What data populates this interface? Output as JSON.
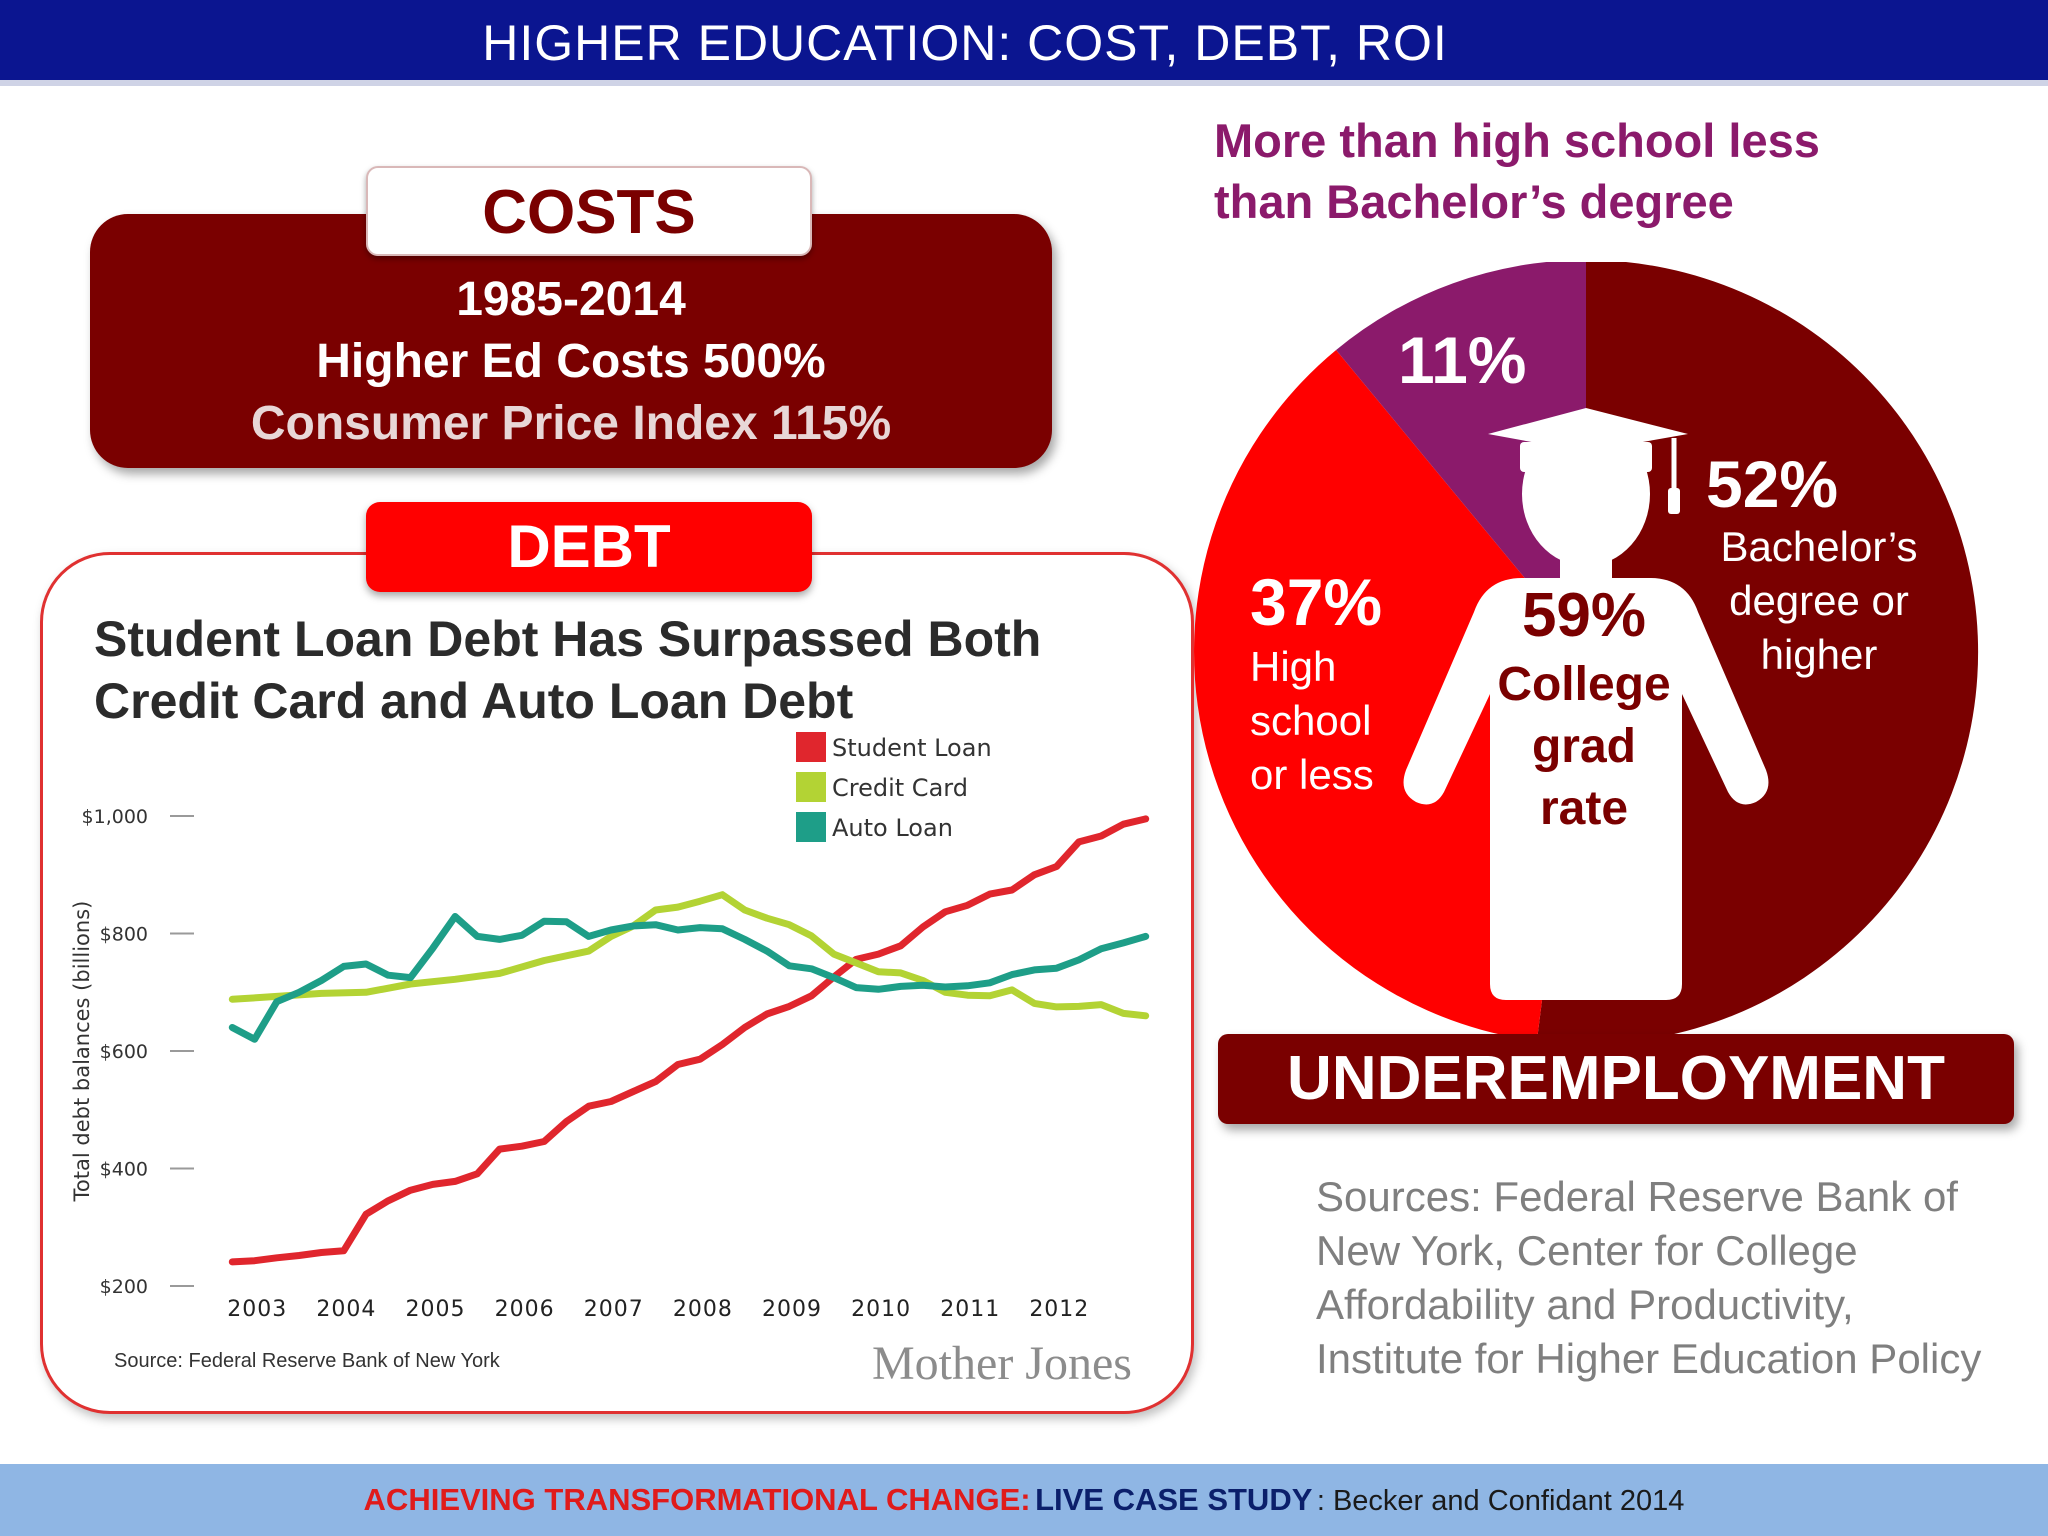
{
  "header": {
    "title": "HIGHER EDUCATION: COST, DEBT, ROI"
  },
  "costs": {
    "title": "COSTS",
    "line1": "1985-2014",
    "line2": "Higher Ed Costs 500%",
    "line3": "Consumer Price Index 115%"
  },
  "debt": {
    "title": "DEBT",
    "chart_title_line1": "Student Loan Debt Has Surpassed Both",
    "chart_title_line2": "Credit Card and Auto Loan Debt",
    "source": "Source: Federal Reserve Bank of New York",
    "brand": "Mother Jones"
  },
  "pie": {
    "heading_line1": "More than high school less",
    "heading_line2": "than Bachelor’s degree",
    "pct_11": "11%",
    "pct_52": "52%",
    "desc_52": [
      "Bachelor’s",
      "degree or",
      "higher"
    ],
    "pct_37": "37%",
    "desc_37": [
      "High",
      "school",
      "or less"
    ],
    "pct_59": "59%",
    "desc_59": [
      "College",
      "grad",
      "rate"
    ],
    "underemployment": "UNDEREMPLOYMENT"
  },
  "sources": "Sources: Federal Reserve Bank of New York, Center for College Affordability and Productivity, Institute for Higher Education Policy",
  "footer": {
    "part1": "ACHIEVING TRANSFORMATIONAL CHANGE:",
    "part2": "LIVE CASE STUDY",
    "part3": ": Becker and Confidant 2014"
  },
  "colors": {
    "header_blue": "#0b1590",
    "dark_red": "#7a0000",
    "bright_red": "#ff0000",
    "purple": "#8b1a6b",
    "student_loan": "#e0262d",
    "credit_card": "#b3d334",
    "auto_loan": "#1e9e88",
    "footer_blue": "#8fb6e4"
  },
  "icons": {
    "graduate": "graduate-silhouette-icon"
  },
  "chart_data": [
    {
      "type": "line",
      "title": "Student Loan Debt Has Surpassed Both Credit Card and Auto Loan Debt",
      "ylabel": "Total debt balances (billions)",
      "xlabel": "",
      "ylim": [
        200,
        1000
      ],
      "yticks": [
        {
          "value": 1000,
          "label": "$1,000"
        },
        {
          "value": 800,
          "label": "$800"
        },
        {
          "value": 600,
          "label": "$600"
        },
        {
          "value": 400,
          "label": "$400"
        },
        {
          "value": 200,
          "label": "$200"
        }
      ],
      "xlim": [
        2002.75,
        2013.5
      ],
      "xticks": [
        2003,
        2004,
        2005,
        2006,
        2007,
        2008,
        2009,
        2010,
        2011,
        2012
      ],
      "grid": false,
      "legend": "top-right",
      "series": [
        {
          "name": "Student Loan",
          "color": "#e0262d",
          "x": [
            2003,
            2003.25,
            2003.5,
            2003.75,
            2004,
            2004.25,
            2004.5,
            2004.75,
            2005,
            2005.25,
            2005.5,
            2005.75,
            2006,
            2006.25,
            2006.5,
            2006.75,
            2007,
            2007.25,
            2007.5,
            2007.75,
            2008,
            2008.25,
            2008.5,
            2008.75,
            2009,
            2009.25,
            2009.5,
            2009.75,
            2010,
            2010.25,
            2010.5,
            2010.75,
            2011,
            2011.25,
            2011.5,
            2011.75,
            2012,
            2012.25,
            2012.5,
            2012.75,
            2013,
            2013.25
          ],
          "values": [
            241,
            243,
            248,
            252,
            257,
            260,
            322,
            345,
            363,
            373,
            378,
            391,
            433,
            438,
            446,
            480,
            506,
            514,
            531,
            548,
            577,
            586,
            611,
            640,
            663,
            676,
            694,
            726,
            756,
            765,
            779,
            811,
            837,
            848,
            867,
            874,
            900,
            914,
            956,
            966,
            986,
            995
          ]
        },
        {
          "name": "Credit Card",
          "color": "#b3d334",
          "x": [
            2003,
            2003.5,
            2004,
            2004.5,
            2005,
            2005.5,
            2006,
            2006.5,
            2007,
            2007.25,
            2007.5,
            2007.75,
            2008,
            2008.25,
            2008.5,
            2008.75,
            2009,
            2009.25,
            2009.5,
            2009.75,
            2010,
            2010.25,
            2010.5,
            2010.75,
            2011,
            2011.25,
            2011.5,
            2011.75,
            2012,
            2012.25,
            2012.5,
            2012.75,
            2013,
            2013.25
          ],
          "values": [
            688,
            693,
            698,
            700,
            714,
            722,
            732,
            754,
            770,
            795,
            813,
            840,
            845,
            855,
            866,
            840,
            826,
            815,
            796,
            765,
            750,
            735,
            733,
            720,
            700,
            695,
            694,
            704,
            681,
            675,
            676,
            679,
            664,
            660
          ]
        },
        {
          "name": "Auto Loan",
          "color": "#1e9e88",
          "x": [
            2003,
            2003.25,
            2003.5,
            2003.75,
            2004,
            2004.25,
            2004.5,
            2004.75,
            2005,
            2005.25,
            2005.5,
            2005.75,
            2006,
            2006.25,
            2006.5,
            2006.75,
            2007,
            2007.25,
            2007.5,
            2007.75,
            2008,
            2008.25,
            2008.5,
            2008.75,
            2009,
            2009.25,
            2009.5,
            2009.75,
            2010,
            2010.25,
            2010.5,
            2010.75,
            2011,
            2011.25,
            2011.5,
            2011.75,
            2012,
            2012.25,
            2012.5,
            2012.75,
            2013,
            2013.25
          ],
          "values": [
            640,
            620,
            684,
            700,
            720,
            744,
            748,
            729,
            725,
            775,
            829,
            795,
            790,
            797,
            821,
            820,
            795,
            806,
            813,
            815,
            806,
            810,
            808,
            790,
            770,
            745,
            740,
            725,
            708,
            705,
            710,
            712,
            709,
            711,
            716,
            730,
            738,
            741,
            755,
            774,
            784,
            795
          ]
        }
      ]
    },
    {
      "type": "pie",
      "title": "More than high school less than Bachelor’s degree",
      "slices": [
        {
          "label": "Bachelor’s degree or higher",
          "value": 52,
          "color": "#7a0000"
        },
        {
          "label": "High school or less",
          "value": 37,
          "color": "#ff0000"
        },
        {
          "label": "More than high school less than Bachelor’s degree",
          "value": 11,
          "color": "#8b1a6b"
        }
      ],
      "center_label": "59% College grad rate"
    }
  ]
}
